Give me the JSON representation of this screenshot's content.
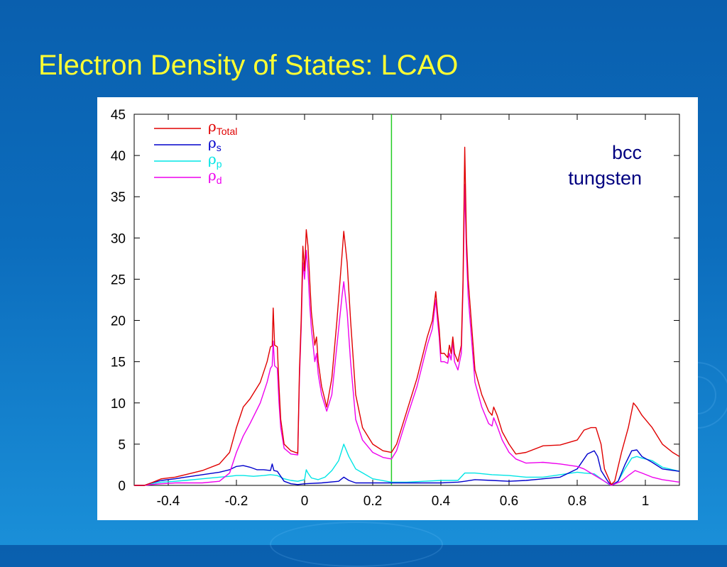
{
  "slide": {
    "title": "Electron Density of States: LCAO"
  },
  "chart_data": {
    "type": "line",
    "title": "",
    "xlabel": "",
    "ylabel": "",
    "xlim": [
      -0.5,
      1.1
    ],
    "ylim": [
      0,
      45
    ],
    "x_ticks": [
      -0.4,
      -0.2,
      0,
      0.2,
      0.4,
      0.6,
      0.8,
      1
    ],
    "x_tick_labels": [
      "-0.4",
      "-0.2",
      "0",
      "0.2",
      "0.4",
      "0.6",
      "0.8",
      "1"
    ],
    "y_ticks": [
      0,
      5,
      10,
      15,
      20,
      25,
      30,
      35,
      40,
      45
    ],
    "y_tick_labels": [
      "0",
      "5",
      "10",
      "15",
      "20",
      "25",
      "30",
      "35",
      "40",
      "45"
    ],
    "grid": false,
    "legend_position": "top-left",
    "fermi_level_x": 0.255,
    "fermi_level_color": "#22cc22",
    "annotation_lines": [
      "bcc",
      "tungsten"
    ],
    "series": [
      {
        "name": "ρ",
        "subscript": "Total",
        "color": "#e00000",
        "points": [
          [
            -0.5,
            0
          ],
          [
            -0.47,
            0
          ],
          [
            -0.45,
            0.3
          ],
          [
            -0.42,
            0.8
          ],
          [
            -0.38,
            1
          ],
          [
            -0.35,
            1.3
          ],
          [
            -0.3,
            1.8
          ],
          [
            -0.25,
            2.6
          ],
          [
            -0.22,
            4
          ],
          [
            -0.2,
            7
          ],
          [
            -0.18,
            9.5
          ],
          [
            -0.16,
            10.5
          ],
          [
            -0.13,
            12.5
          ],
          [
            -0.11,
            15
          ],
          [
            -0.1,
            16.8
          ],
          [
            -0.095,
            16.9
          ],
          [
            -0.092,
            21.5
          ],
          [
            -0.088,
            17
          ],
          [
            -0.08,
            16.8
          ],
          [
            -0.075,
            12
          ],
          [
            -0.07,
            8
          ],
          [
            -0.06,
            5
          ],
          [
            -0.04,
            4.2
          ],
          [
            -0.02,
            3.9
          ],
          [
            -0.015,
            14
          ],
          [
            -0.01,
            20
          ],
          [
            -0.005,
            29
          ],
          [
            0,
            26
          ],
          [
            0.005,
            31
          ],
          [
            0.01,
            29
          ],
          [
            0.015,
            25
          ],
          [
            0.02,
            21
          ],
          [
            0.025,
            19
          ],
          [
            0.03,
            17
          ],
          [
            0.035,
            18
          ],
          [
            0.04,
            15
          ],
          [
            0.05,
            12
          ],
          [
            0.065,
            9.5
          ],
          [
            0.08,
            13
          ],
          [
            0.095,
            20
          ],
          [
            0.11,
            28
          ],
          [
            0.115,
            30.8
          ],
          [
            0.125,
            27
          ],
          [
            0.135,
            20
          ],
          [
            0.15,
            11
          ],
          [
            0.17,
            7
          ],
          [
            0.2,
            5
          ],
          [
            0.23,
            4.2
          ],
          [
            0.255,
            4
          ],
          [
            0.27,
            5
          ],
          [
            0.3,
            9
          ],
          [
            0.33,
            13
          ],
          [
            0.36,
            18
          ],
          [
            0.375,
            20
          ],
          [
            0.385,
            23.5
          ],
          [
            0.39,
            21
          ],
          [
            0.395,
            19
          ],
          [
            0.4,
            16
          ],
          [
            0.41,
            16
          ],
          [
            0.42,
            15.5
          ],
          [
            0.425,
            17
          ],
          [
            0.43,
            16
          ],
          [
            0.435,
            18
          ],
          [
            0.44,
            16
          ],
          [
            0.45,
            15
          ],
          [
            0.46,
            17
          ],
          [
            0.465,
            25
          ],
          [
            0.47,
            41
          ],
          [
            0.475,
            30
          ],
          [
            0.48,
            25
          ],
          [
            0.5,
            14
          ],
          [
            0.52,
            11
          ],
          [
            0.54,
            9
          ],
          [
            0.55,
            8.5
          ],
          [
            0.555,
            9.5
          ],
          [
            0.565,
            8.5
          ],
          [
            0.58,
            6.5
          ],
          [
            0.6,
            5
          ],
          [
            0.62,
            3.8
          ],
          [
            0.65,
            4
          ],
          [
            0.7,
            4.8
          ],
          [
            0.75,
            4.9
          ],
          [
            0.8,
            5.5
          ],
          [
            0.82,
            6.7
          ],
          [
            0.84,
            7
          ],
          [
            0.855,
            7
          ],
          [
            0.87,
            5
          ],
          [
            0.88,
            2
          ],
          [
            0.9,
            0.1
          ],
          [
            0.91,
            0.5
          ],
          [
            0.93,
            4
          ],
          [
            0.95,
            7
          ],
          [
            0.965,
            10
          ],
          [
            0.975,
            9.5
          ],
          [
            0.99,
            8.5
          ],
          [
            1.02,
            7
          ],
          [
            1.05,
            5
          ],
          [
            1.08,
            4
          ],
          [
            1.1,
            3.5
          ]
        ]
      },
      {
        "name": "ρ",
        "subscript": "s",
        "color": "#0000cc",
        "points": [
          [
            -0.5,
            0
          ],
          [
            -0.47,
            0
          ],
          [
            -0.45,
            0.3
          ],
          [
            -0.42,
            0.6
          ],
          [
            -0.38,
            0.8
          ],
          [
            -0.35,
            1
          ],
          [
            -0.3,
            1.3
          ],
          [
            -0.25,
            1.6
          ],
          [
            -0.22,
            1.9
          ],
          [
            -0.2,
            2.3
          ],
          [
            -0.18,
            2.4
          ],
          [
            -0.16,
            2.2
          ],
          [
            -0.14,
            1.9
          ],
          [
            -0.12,
            1.9
          ],
          [
            -0.1,
            1.8
          ],
          [
            -0.095,
            2.6
          ],
          [
            -0.09,
            1.8
          ],
          [
            -0.08,
            1.7
          ],
          [
            -0.06,
            0.5
          ],
          [
            -0.04,
            0.2
          ],
          [
            -0.02,
            0.1
          ],
          [
            0,
            0.2
          ],
          [
            0.05,
            0.3
          ],
          [
            0.1,
            0.5
          ],
          [
            0.115,
            1
          ],
          [
            0.13,
            0.6
          ],
          [
            0.15,
            0.3
          ],
          [
            0.2,
            0.3
          ],
          [
            0.255,
            0.3
          ],
          [
            0.3,
            0.3
          ],
          [
            0.35,
            0.3
          ],
          [
            0.4,
            0.3
          ],
          [
            0.45,
            0.4
          ],
          [
            0.47,
            0.5
          ],
          [
            0.5,
            0.7
          ],
          [
            0.55,
            0.6
          ],
          [
            0.6,
            0.5
          ],
          [
            0.65,
            0.6
          ],
          [
            0.7,
            0.8
          ],
          [
            0.75,
            1
          ],
          [
            0.8,
            2
          ],
          [
            0.83,
            3.8
          ],
          [
            0.85,
            4.2
          ],
          [
            0.86,
            3.5
          ],
          [
            0.87,
            1.8
          ],
          [
            0.89,
            0.5
          ],
          [
            0.9,
            0
          ],
          [
            0.92,
            0.5
          ],
          [
            0.94,
            2.5
          ],
          [
            0.96,
            4.2
          ],
          [
            0.975,
            4.3
          ],
          [
            0.99,
            3.5
          ],
          [
            1.02,
            2.8
          ],
          [
            1.05,
            2
          ],
          [
            1.1,
            1.7
          ]
        ]
      },
      {
        "name": "ρ",
        "subscript": "p",
        "color": "#00e5e5",
        "points": [
          [
            -0.5,
            0
          ],
          [
            -0.47,
            0
          ],
          [
            -0.45,
            0.2
          ],
          [
            -0.42,
            0.4
          ],
          [
            -0.38,
            0.5
          ],
          [
            -0.35,
            0.6
          ],
          [
            -0.3,
            0.8
          ],
          [
            -0.25,
            1
          ],
          [
            -0.22,
            1.1
          ],
          [
            -0.2,
            1.2
          ],
          [
            -0.18,
            1.2
          ],
          [
            -0.15,
            1.1
          ],
          [
            -0.12,
            1.2
          ],
          [
            -0.1,
            1.3
          ],
          [
            -0.08,
            1.2
          ],
          [
            -0.06,
            0.8
          ],
          [
            -0.04,
            0.6
          ],
          [
            -0.02,
            0.5
          ],
          [
            0,
            0.7
          ],
          [
            0.005,
            1.9
          ],
          [
            0.01,
            1.5
          ],
          [
            0.02,
            0.9
          ],
          [
            0.04,
            0.7
          ],
          [
            0.06,
            1
          ],
          [
            0.08,
            1.8
          ],
          [
            0.1,
            3
          ],
          [
            0.115,
            5
          ],
          [
            0.13,
            3.5
          ],
          [
            0.15,
            2
          ],
          [
            0.2,
            0.8
          ],
          [
            0.255,
            0.4
          ],
          [
            0.3,
            0.4
          ],
          [
            0.35,
            0.5
          ],
          [
            0.4,
            0.6
          ],
          [
            0.45,
            0.6
          ],
          [
            0.47,
            1.5
          ],
          [
            0.5,
            1.5
          ],
          [
            0.55,
            1.3
          ],
          [
            0.6,
            1.2
          ],
          [
            0.65,
            1
          ],
          [
            0.7,
            1
          ],
          [
            0.75,
            1.3
          ],
          [
            0.8,
            1.6
          ],
          [
            0.82,
            1.5
          ],
          [
            0.85,
            1.4
          ],
          [
            0.87,
            0.8
          ],
          [
            0.89,
            0.2
          ],
          [
            0.9,
            0
          ],
          [
            0.92,
            0.5
          ],
          [
            0.94,
            2
          ],
          [
            0.96,
            3.3
          ],
          [
            0.975,
            3.5
          ],
          [
            0.99,
            3.3
          ],
          [
            1.02,
            3
          ],
          [
            1.05,
            2.2
          ],
          [
            1.1,
            1.7
          ]
        ]
      },
      {
        "name": "ρ",
        "subscript": "d",
        "color": "#ee00ee",
        "points": [
          [
            -0.5,
            0
          ],
          [
            -0.47,
            0
          ],
          [
            -0.45,
            0.1
          ],
          [
            -0.42,
            0.2
          ],
          [
            -0.38,
            0.3
          ],
          [
            -0.35,
            0.3
          ],
          [
            -0.3,
            0.3
          ],
          [
            -0.25,
            0.5
          ],
          [
            -0.22,
            1.5
          ],
          [
            -0.2,
            4
          ],
          [
            -0.18,
            6
          ],
          [
            -0.16,
            7.5
          ],
          [
            -0.13,
            10
          ],
          [
            -0.11,
            12.5
          ],
          [
            -0.1,
            14.2
          ],
          [
            -0.095,
            14.5
          ],
          [
            -0.092,
            17.5
          ],
          [
            -0.088,
            14.5
          ],
          [
            -0.08,
            14.2
          ],
          [
            -0.075,
            10
          ],
          [
            -0.07,
            7
          ],
          [
            -0.06,
            4.5
          ],
          [
            -0.04,
            3.8
          ],
          [
            -0.02,
            3.7
          ],
          [
            -0.015,
            13
          ],
          [
            -0.01,
            19
          ],
          [
            -0.005,
            27
          ],
          [
            0,
            25
          ],
          [
            0.005,
            28.5
          ],
          [
            0.01,
            26
          ],
          [
            0.015,
            22
          ],
          [
            0.02,
            19
          ],
          [
            0.025,
            17
          ],
          [
            0.03,
            15
          ],
          [
            0.035,
            16
          ],
          [
            0.04,
            13.5
          ],
          [
            0.05,
            11
          ],
          [
            0.065,
            9
          ],
          [
            0.08,
            11
          ],
          [
            0.095,
            17
          ],
          [
            0.11,
            23
          ],
          [
            0.115,
            24.7
          ],
          [
            0.125,
            21
          ],
          [
            0.135,
            15
          ],
          [
            0.15,
            8
          ],
          [
            0.17,
            5.5
          ],
          [
            0.2,
            4
          ],
          [
            0.23,
            3.4
          ],
          [
            0.255,
            3.2
          ],
          [
            0.27,
            4.2
          ],
          [
            0.3,
            8.2
          ],
          [
            0.33,
            12
          ],
          [
            0.36,
            17
          ],
          [
            0.375,
            19
          ],
          [
            0.385,
            22.5
          ],
          [
            0.39,
            20
          ],
          [
            0.395,
            18
          ],
          [
            0.4,
            15
          ],
          [
            0.41,
            15
          ],
          [
            0.42,
            14.8
          ],
          [
            0.425,
            16
          ],
          [
            0.43,
            15.2
          ],
          [
            0.435,
            17.5
          ],
          [
            0.44,
            15
          ],
          [
            0.45,
            14
          ],
          [
            0.46,
            16
          ],
          [
            0.465,
            24
          ],
          [
            0.47,
            36.5
          ],
          [
            0.475,
            28
          ],
          [
            0.48,
            23
          ],
          [
            0.5,
            12.5
          ],
          [
            0.52,
            9.5
          ],
          [
            0.54,
            7.5
          ],
          [
            0.55,
            7.2
          ],
          [
            0.555,
            8.2
          ],
          [
            0.565,
            7.2
          ],
          [
            0.58,
            5.5
          ],
          [
            0.6,
            4
          ],
          [
            0.62,
            3.2
          ],
          [
            0.65,
            2.7
          ],
          [
            0.7,
            2.8
          ],
          [
            0.75,
            2.6
          ],
          [
            0.8,
            2.3
          ],
          [
            0.82,
            2
          ],
          [
            0.84,
            1.5
          ],
          [
            0.86,
            1
          ],
          [
            0.88,
            0.5
          ],
          [
            0.9,
            0
          ],
          [
            0.93,
            0.5
          ],
          [
            0.95,
            1.2
          ],
          [
            0.97,
            1.8
          ],
          [
            0.99,
            1.5
          ],
          [
            1.02,
            1
          ],
          [
            1.05,
            0.7
          ],
          [
            1.1,
            0.4
          ]
        ]
      }
    ]
  }
}
